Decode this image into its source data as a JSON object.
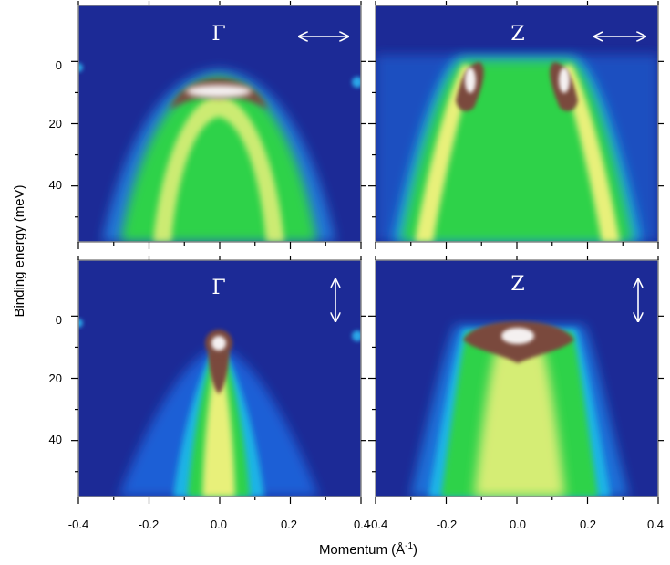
{
  "chart_data": {
    "type": "heatmap",
    "xlabel": "Momentum (Å",
    "xlabel_sup": "-1",
    "xlabel_close": ")",
    "ylabel": "Binding energy (meV)",
    "xlim": [
      -0.4,
      0.4
    ],
    "ylim": [
      -18,
      58
    ],
    "y_inverted": true,
    "x_ticks": [
      "-0.4",
      "-0.2",
      "0.0",
      "0.2",
      "0.4"
    ],
    "y_ticks": [
      "0",
      "20",
      "40"
    ],
    "colormap": [
      "#1c2a96",
      "#1f5fd6",
      "#1fb4e6",
      "#2fd24a",
      "#e8f07a",
      "#7a4a3c",
      "#f4f0f0"
    ],
    "panels": [
      {
        "label": "Γ",
        "polarization": "horizontal",
        "bands": [
          {
            "x": [
              -0.3,
              -0.2,
              -0.1,
              0.0,
              0.1,
              0.2,
              0.3
            ],
            "y": [
              58,
              38,
              17,
              10,
              17,
              38,
              58
            ]
          }
        ],
        "intensity_max": {
          "x": 0.0,
          "y": 6
        }
      },
      {
        "label": "Z",
        "polarization": "horizontal",
        "bands": [
          {
            "x": [
              -0.12,
              -0.14,
              -0.2,
              -0.28
            ],
            "y": [
              0,
              10,
              30,
              58
            ]
          },
          {
            "x": [
              0.12,
              0.14,
              0.2,
              0.28
            ],
            "y": [
              0,
              10,
              30,
              58
            ]
          }
        ],
        "intensity_max": {
          "x": -0.12,
          "y": 5
        }
      },
      {
        "label": "Γ",
        "polarization": "vertical",
        "bands": [
          {
            "x": [
              -0.1,
              -0.05,
              0.0,
              0.05,
              0.1
            ],
            "y": [
              58,
              25,
              8,
              25,
              58
            ]
          }
        ],
        "intensity_max": {
          "x": 0.0,
          "y": 7
        }
      },
      {
        "label": "Z",
        "polarization": "vertical",
        "bands": [
          {
            "x": [
              -0.15,
              -0.07,
              0.0,
              0.07,
              0.15
            ],
            "y": [
              7,
              6,
              6,
              6,
              7
            ]
          }
        ],
        "intensity_max": {
          "x": 0.0,
          "y": 6
        }
      }
    ]
  }
}
